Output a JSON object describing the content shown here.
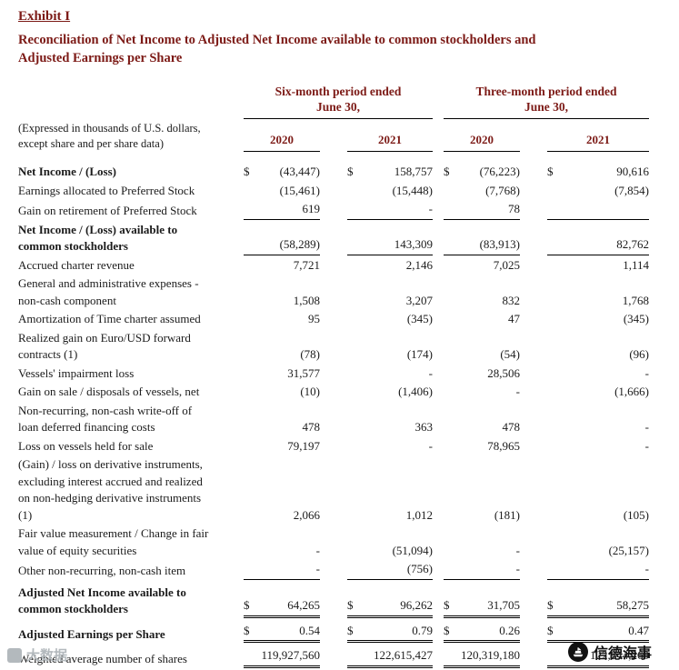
{
  "page": {
    "exhibit_label": "Exhibit I",
    "title_line1": "Reconciliation of Net Income to Adjusted Net Income available to common stockholders and",
    "title_line2": "Adjusted Earnings per Share"
  },
  "colors": {
    "heading_text": "#7c1a16",
    "body_text": "#1b1b1b",
    "rule": "#000000",
    "watermark_gray": "#b3b9bd"
  },
  "table": {
    "note_line1": "(Expressed in thousands of U.S. dollars,",
    "note_line2": "except share and per share data)",
    "period_headers": [
      {
        "line1": "Six-month period ended",
        "line2": "June 30,"
      },
      {
        "line1": "Three-month period ended",
        "line2": "June 30,"
      }
    ],
    "years": [
      "2020",
      "2021",
      "2020",
      "2021"
    ],
    "rows": [
      {
        "label_lines": [
          "Net Income / (Loss)"
        ],
        "bold": true,
        "dollar": true,
        "values": [
          "(43,447)",
          "158,757",
          "(76,223)",
          "90,616"
        ],
        "rule": "none"
      },
      {
        "label_lines": [
          "Earnings allocated to Preferred Stock"
        ],
        "bold": false,
        "dollar": false,
        "values": [
          "(15,461)",
          "(15,448)",
          "(7,768)",
          "(7,854)"
        ],
        "rule": "none"
      },
      {
        "label_lines": [
          "Gain on retirement of Preferred Stock"
        ],
        "bold": false,
        "dollar": false,
        "values": [
          "619",
          "-",
          "78",
          ""
        ],
        "rule": "single"
      },
      {
        "label_lines": [
          "Net Income / (Loss) available to",
          "common stockholders"
        ],
        "bold": true,
        "dollar": false,
        "values": [
          "(58,289)",
          "143,309",
          "(83,913)",
          "82,762"
        ],
        "rule": "single"
      },
      {
        "label_lines": [
          "Accrued charter revenue"
        ],
        "bold": false,
        "dollar": false,
        "values": [
          "7,721",
          "2,146",
          "7,025",
          "1,114"
        ],
        "rule": "none"
      },
      {
        "label_lines": [
          "General and administrative expenses -",
          "non-cash component"
        ],
        "bold": false,
        "dollar": false,
        "values": [
          "1,508",
          "3,207",
          "832",
          "1,768"
        ],
        "rule": "none"
      },
      {
        "label_lines": [
          "Amortization of Time charter assumed"
        ],
        "bold": false,
        "dollar": false,
        "values": [
          "95",
          "(345)",
          "47",
          "(345)"
        ],
        "rule": "none"
      },
      {
        "label_lines": [
          "Realized gain on Euro/USD forward",
          "contracts (1)"
        ],
        "bold": false,
        "dollar": false,
        "values": [
          "(78)",
          "(174)",
          "(54)",
          "(96)"
        ],
        "rule": "none"
      },
      {
        "label_lines": [
          "Vessels' impairment loss"
        ],
        "bold": false,
        "dollar": false,
        "values": [
          "31,577",
          "-",
          "28,506",
          "-"
        ],
        "rule": "none"
      },
      {
        "label_lines": [
          "Gain on sale / disposals of vessels, net"
        ],
        "bold": false,
        "dollar": false,
        "values": [
          "(10)",
          "(1,406)",
          "-",
          "(1,666)"
        ],
        "rule": "none"
      },
      {
        "label_lines": [
          "Non-recurring, non-cash write-off of",
          "loan deferred financing costs"
        ],
        "bold": false,
        "dollar": false,
        "values": [
          "478",
          "363",
          "478",
          "-"
        ],
        "rule": "none"
      },
      {
        "label_lines": [
          "Loss on vessels held for sale"
        ],
        "bold": false,
        "dollar": false,
        "values": [
          "79,197",
          "-",
          "78,965",
          "-"
        ],
        "rule": "none"
      },
      {
        "label_lines": [
          "(Gain) / loss on derivative instruments,",
          "excluding interest accrued and realized",
          "on non-hedging derivative instruments",
          "(1)"
        ],
        "bold": false,
        "dollar": false,
        "values": [
          "2,066",
          "1,012",
          "(181)",
          "(105)"
        ],
        "rule": "none"
      },
      {
        "label_lines": [
          "Fair value measurement / Change in fair",
          "value of equity securities"
        ],
        "bold": false,
        "dollar": false,
        "values": [
          "-",
          "(51,094)",
          "-",
          "(25,157)"
        ],
        "rule": "none"
      },
      {
        "label_lines": [
          "Other non-recurring, non-cash item"
        ],
        "bold": false,
        "dollar": false,
        "values": [
          "-",
          "(756)",
          "-",
          "-"
        ],
        "rule": "single"
      },
      {
        "label_lines": [
          "Adjusted Net Income available to",
          "common stockholders"
        ],
        "bold": true,
        "dollar": true,
        "values": [
          "64,265",
          "96,262",
          "31,705",
          "58,275"
        ],
        "rule": "double"
      },
      {
        "label_lines": [
          "Adjusted Earnings per Share"
        ],
        "bold": true,
        "dollar": true,
        "values": [
          "0.54",
          "0.79",
          "0.26",
          "0.47"
        ],
        "rule": "double"
      },
      {
        "label_lines": [
          "Weighted average number of shares"
        ],
        "bold": false,
        "dollar": false,
        "values": [
          "119,927,560",
          "122,615,427",
          "120,319,180",
          "122,844,260"
        ],
        "rule": "double"
      }
    ]
  },
  "watermarks": {
    "bottom_left_text": "大数据",
    "bottom_right_text": "信德海事"
  }
}
